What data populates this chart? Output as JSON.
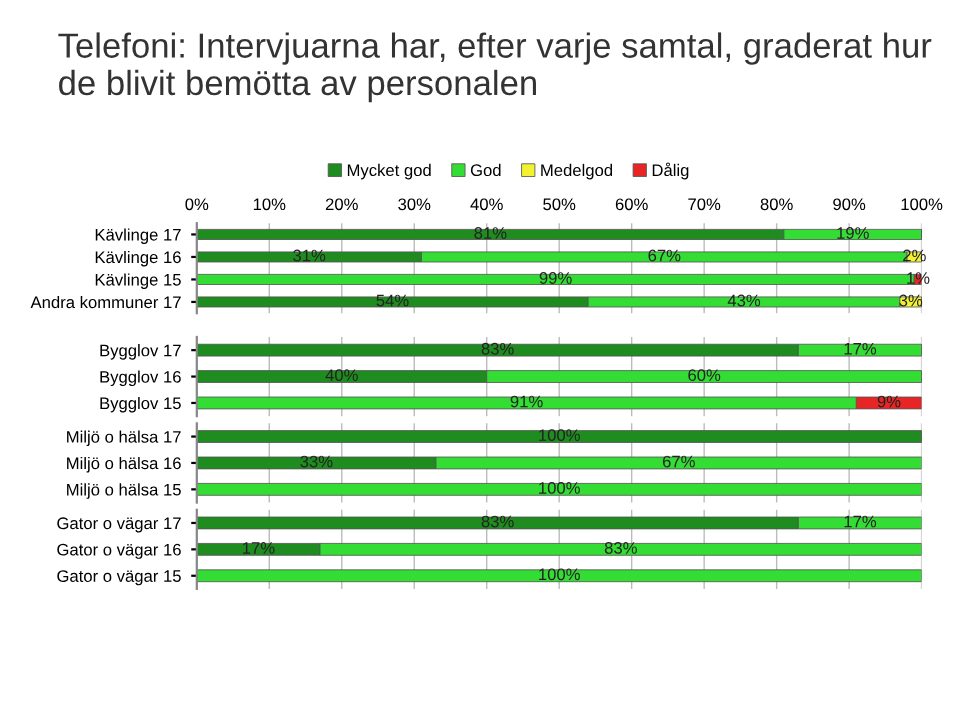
{
  "chart_data": [
    {
      "type": "bar",
      "orientation": "horizontal",
      "stacked": true,
      "title": "Telefoni: Intervjuarna har, efter varje samtal, graderat hur de blivit bemötta av personalen",
      "legend": "top",
      "grid": "x",
      "categories": [
        "Kävlinge 17",
        "Kävlinge 16",
        "Kävlinge 15",
        "Andra kommuner 17"
      ],
      "xlim": [
        0,
        100
      ],
      "xticks": [
        {
          "value": 0,
          "label": "0%"
        },
        {
          "value": 10,
          "label": "10%"
        },
        {
          "value": 20,
          "label": "20%"
        },
        {
          "value": 30,
          "label": "30%"
        },
        {
          "value": 40,
          "label": "40%"
        },
        {
          "value": 50,
          "label": "50%"
        },
        {
          "value": 60,
          "label": "60%"
        },
        {
          "value": 70,
          "label": "70%"
        },
        {
          "value": 80,
          "label": "80%"
        },
        {
          "value": 90,
          "label": "90%"
        },
        {
          "value": 100,
          "label": "100%"
        }
      ],
      "series": [
        {
          "name": "Mycket god",
          "color": "#1e8c1e",
          "values": [
            81,
            31,
            null,
            54
          ],
          "value_labels": [
            "81%",
            "31%",
            null,
            "54%"
          ]
        },
        {
          "name": "God",
          "color": "#33dd33",
          "values": [
            19,
            67,
            99,
            43
          ],
          "value_labels": [
            "19%",
            "67%",
            "99%",
            "43%"
          ]
        },
        {
          "name": "Medelgod",
          "color": "#f2f233",
          "values": [
            null,
            2,
            null,
            3
          ],
          "value_labels": [
            null,
            "2%",
            null,
            "3%"
          ]
        },
        {
          "name": "Dålig",
          "color": "#e82525",
          "values": [
            null,
            null,
            1,
            null
          ],
          "value_labels": [
            null,
            null,
            "1%",
            null
          ]
        }
      ]
    },
    {
      "type": "bar",
      "orientation": "horizontal",
      "stacked": true,
      "grid": "x",
      "tick_labels": "y",
      "categories": [
        "Bygglov 17",
        "Bygglov 16",
        "Bygglov 15"
      ],
      "xlim": [
        0,
        100
      ],
      "xticks": [
        0,
        10,
        20,
        30,
        40,
        50,
        60,
        70,
        80,
        90,
        100
      ],
      "series": [
        {
          "color": "#1e8c1e",
          "values": [
            83,
            40,
            null
          ],
          "value_labels": [
            "83%",
            "40%",
            null
          ]
        },
        {
          "color": "#33dd33",
          "values": [
            17,
            60,
            91
          ],
          "value_labels": [
            "17%",
            "60%",
            "91%"
          ]
        },
        {
          "color": "#e82525",
          "values": [
            null,
            null,
            9
          ],
          "value_labels": [
            null,
            null,
            "9%"
          ]
        }
      ]
    },
    {
      "type": "bar",
      "orientation": "horizontal",
      "stacked": true,
      "grid": "x",
      "tick_labels": "y",
      "categories": [
        "Miljö o hälsa 17",
        "Miljö o hälsa 16",
        "Miljö o hälsa 15"
      ],
      "xlim": [
        0,
        100
      ],
      "xticks": [
        0,
        10,
        20,
        30,
        40,
        50,
        60,
        70,
        80,
        90,
        100
      ],
      "series": [
        {
          "color": "#1e8c1e",
          "values": [
            100,
            33,
            null
          ],
          "value_labels": [
            "100%",
            "33%",
            null
          ]
        },
        {
          "color": "#33dd33",
          "values": [
            null,
            67,
            100
          ],
          "value_labels": [
            null,
            "67%",
            "100%"
          ]
        }
      ]
    },
    {
      "type": "bar",
      "orientation": "horizontal",
      "stacked": true,
      "grid": "x",
      "tick_labels": "y",
      "categories": [
        "Gator o vägar 17",
        "Gator o vägar 16",
        "Gator o vägar 15"
      ],
      "xlim": [
        0,
        100
      ],
      "xticks": [
        0,
        10,
        20,
        30,
        40,
        50,
        60,
        70,
        80,
        90,
        100
      ],
      "series": [
        {
          "color": "#1e8c1e",
          "values": [
            83,
            17,
            null
          ],
          "value_labels": [
            "83%",
            "17%",
            null
          ]
        },
        {
          "color": "#33dd33",
          "values": [
            17,
            83,
            100
          ],
          "value_labels": [
            "17%",
            "83%",
            "100%"
          ]
        }
      ]
    }
  ]
}
